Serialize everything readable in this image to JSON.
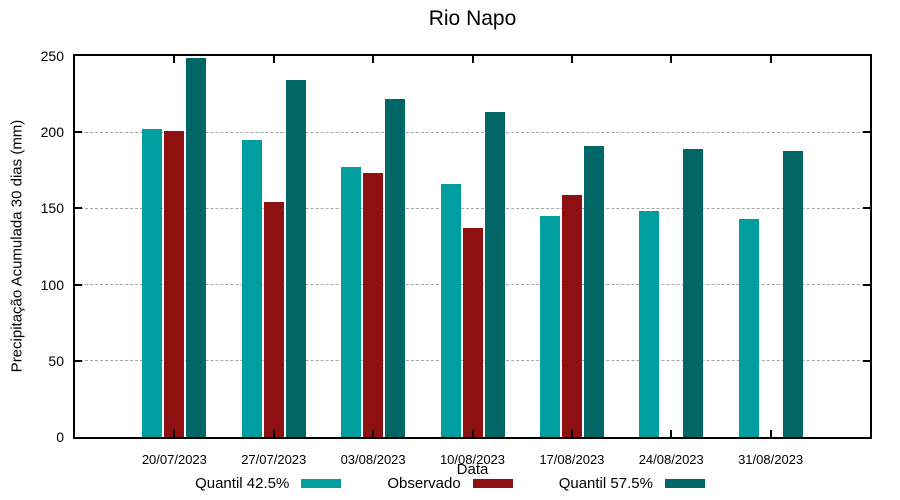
{
  "chart_data": {
    "type": "bar",
    "title": "Rio Napo",
    "xlabel": "Data",
    "ylabel": "Precipitação Acumulada 30 dias (mm)",
    "categories": [
      "20/07/2023",
      "27/07/2023",
      "03/08/2023",
      "10/08/2023",
      "17/08/2023",
      "24/08/2023",
      "31/08/2023"
    ],
    "series": [
      {
        "name": "Quantil 42.5%",
        "color": "#009E9E",
        "values": [
          202,
          195,
          177,
          166,
          145,
          148,
          143
        ]
      },
      {
        "name": "Observado",
        "color": "#8E1010",
        "values": [
          201,
          154,
          173,
          137,
          159,
          null,
          null
        ]
      },
      {
        "name": "Quantil 57.5%",
        "color": "#016666",
        "values": [
          249,
          234,
          222,
          213,
          191,
          189,
          188
        ]
      }
    ],
    "ylim": [
      0,
      250
    ],
    "yticks": [
      0,
      50,
      100,
      150,
      200,
      250
    ],
    "grid": true,
    "legend_position": "bottom",
    "axis_color": "#000000",
    "grid_color": "#a6a6a6",
    "background": "#ffffff"
  }
}
